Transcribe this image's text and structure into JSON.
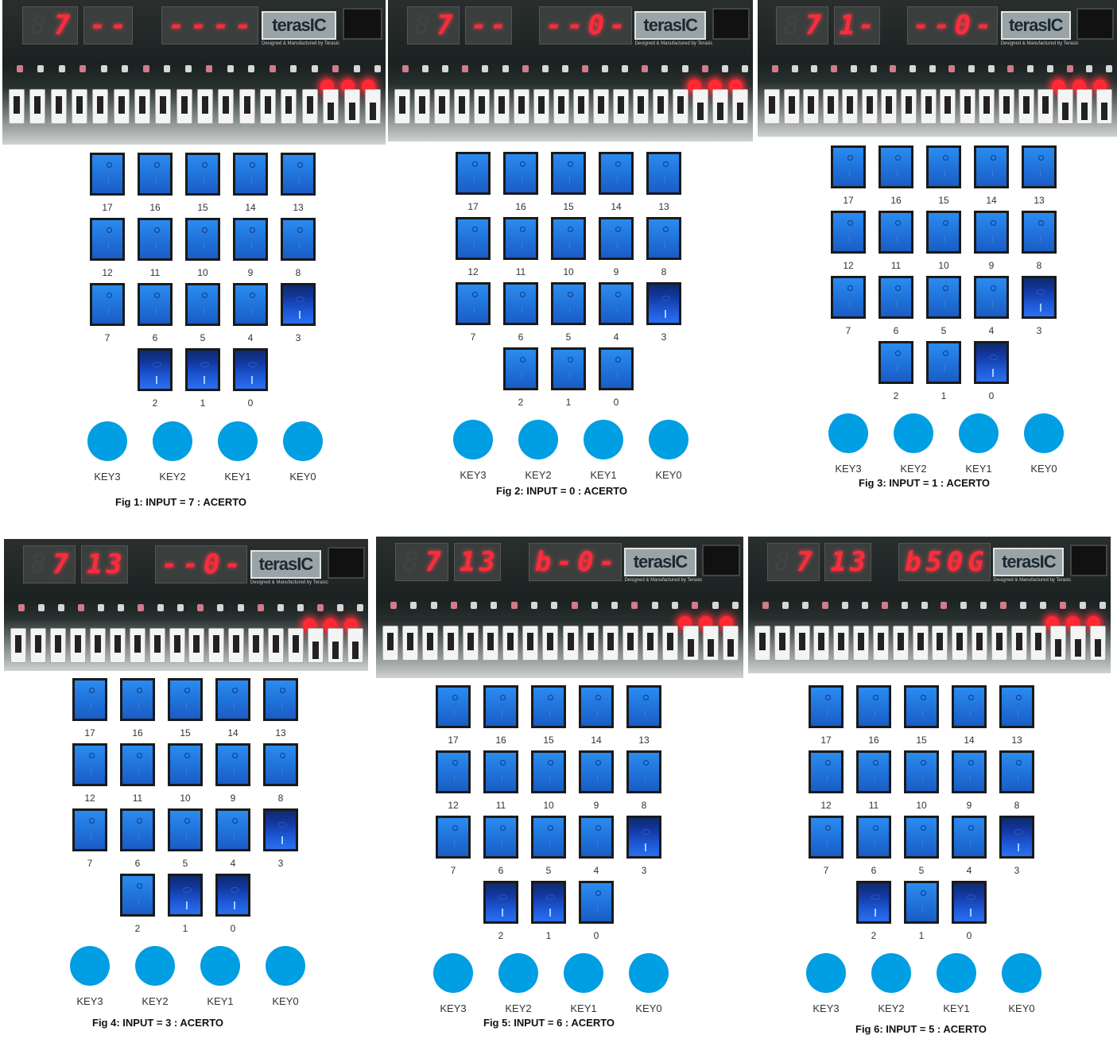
{
  "board": {
    "logo": "terasIC",
    "logo_sub": "Designed & Manufactured by Terasic"
  },
  "switch_labels": [
    "17",
    "16",
    "15",
    "14",
    "13",
    "12",
    "11",
    "10",
    "9",
    "8",
    "7",
    "6",
    "5",
    "4",
    "3",
    "2",
    "1",
    "0"
  ],
  "key_labels": [
    "KEY3",
    "KEY2",
    "KEY1",
    "KEY0"
  ],
  "colors": {
    "key_blue": "#009ee3",
    "switch_blue": "#1f6fd8",
    "segment_red": "#ff2b3a"
  },
  "panels": [
    {
      "caption": "Fig 1: INPUT = 7 : ACERTO",
      "hex_left": [
        "",
        "7"
      ],
      "hex_mid": [
        "-",
        "-"
      ],
      "hex_right": [
        "-",
        "-",
        "-",
        "-"
      ],
      "switch_on": [
        "3",
        "2",
        "1",
        "0"
      ]
    },
    {
      "caption": "Fig 2: INPUT = 0 : ACERTO",
      "hex_left": [
        "",
        "7"
      ],
      "hex_mid": [
        "-",
        "-"
      ],
      "hex_right": [
        "-",
        "-",
        "0",
        "-"
      ],
      "switch_on": [
        "3"
      ]
    },
    {
      "caption": "Fig 3: INPUT = 1 : ACERTO",
      "hex_left": [
        "",
        "7"
      ],
      "hex_mid": [
        "1",
        "-"
      ],
      "hex_right": [
        "-",
        "-",
        "0",
        "-"
      ],
      "switch_on": [
        "3",
        "0"
      ]
    },
    {
      "caption": "Fig 4: INPUT = 3 : ACERTO",
      "hex_left": [
        "",
        "7"
      ],
      "hex_mid": [
        "1",
        "3"
      ],
      "hex_right": [
        "-",
        "-",
        "0",
        "-"
      ],
      "switch_on": [
        "3",
        "1",
        "0"
      ]
    },
    {
      "caption": "Fig 5: INPUT = 6 : ACERTO",
      "hex_left": [
        "",
        "7"
      ],
      "hex_mid": [
        "1",
        "3"
      ],
      "hex_right": [
        "b",
        "-",
        "0",
        "-"
      ],
      "switch_on": [
        "3",
        "2",
        "1"
      ]
    },
    {
      "caption": "Fig 6: INPUT = 5 : ACERTO",
      "hex_left": [
        "",
        "7"
      ],
      "hex_mid": [
        "1",
        "3"
      ],
      "hex_right": [
        "b",
        "5",
        "0",
        "G"
      ],
      "switch_on": [
        "3",
        "2",
        "0"
      ]
    }
  ]
}
